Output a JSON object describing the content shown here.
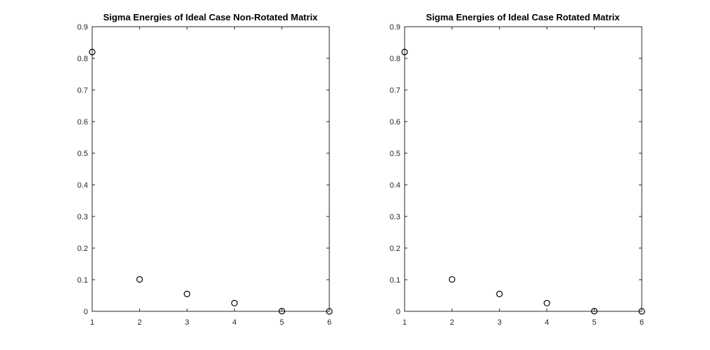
{
  "chart_data": [
    {
      "type": "scatter",
      "title": "Sigma Energies of Ideal Case Non-Rotated Matrix",
      "xlabel": "",
      "ylabel": "",
      "xlim": [
        1,
        6
      ],
      "ylim": [
        0,
        0.9
      ],
      "xticks": [
        "1",
        "2",
        "3",
        "4",
        "5",
        "6"
      ],
      "yticks": [
        "0",
        "0.1",
        "0.2",
        "0.3",
        "0.4",
        "0.5",
        "0.6",
        "0.7",
        "0.8",
        "0.9"
      ],
      "grid": false,
      "marker": "circle",
      "x": [
        1,
        2,
        3,
        4,
        5,
        6
      ],
      "y": [
        0.82,
        0.101,
        0.055,
        0.026,
        0.0005,
        0.0001
      ]
    },
    {
      "type": "scatter",
      "title": "Sigma Energies of Ideal Case Rotated Matrix",
      "xlabel": "",
      "ylabel": "",
      "xlim": [
        1,
        6
      ],
      "ylim": [
        0,
        0.9
      ],
      "xticks": [
        "1",
        "2",
        "3",
        "4",
        "5",
        "6"
      ],
      "yticks": [
        "0",
        "0.1",
        "0.2",
        "0.3",
        "0.4",
        "0.5",
        "0.6",
        "0.7",
        "0.8",
        "0.9"
      ],
      "grid": false,
      "marker": "circle",
      "x": [
        1,
        2,
        3,
        4,
        5,
        6
      ],
      "y": [
        0.82,
        0.101,
        0.055,
        0.026,
        0.0005,
        0.0001
      ]
    }
  ]
}
